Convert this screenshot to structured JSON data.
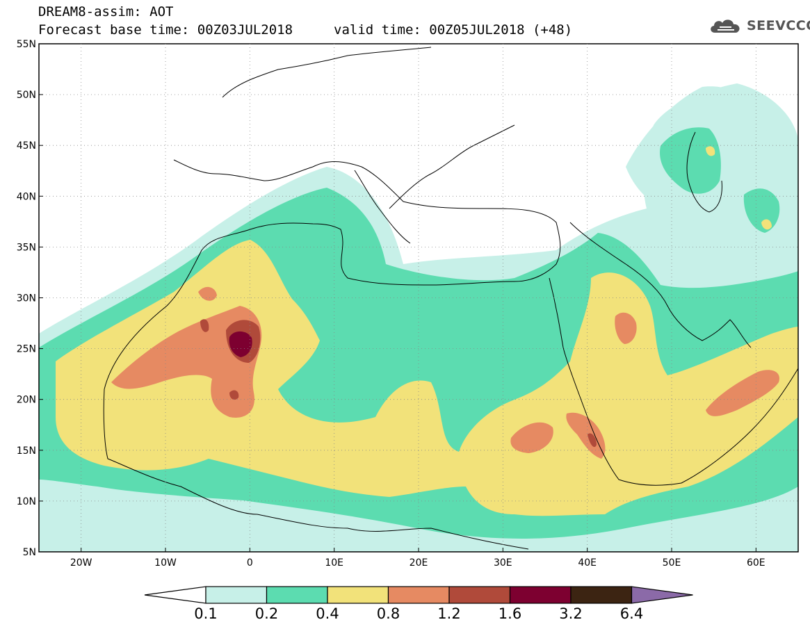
{
  "header": {
    "title": "DREAM8-assim: AOT",
    "base_time": "Forecast base time: 00Z03JUL2018",
    "valid_time": "valid time: 00Z05JUL2018 (+48)"
  },
  "logo": {
    "text": "SEEVCCC",
    "icon": "cloud-icon",
    "color": "#555555"
  },
  "map": {
    "lon_range": [
      -25,
      65
    ],
    "lat_range": [
      5,
      55
    ],
    "lon_ticks": [
      "20W",
      "10W",
      "0",
      "10E",
      "20E",
      "30E",
      "40E",
      "50E",
      "60E"
    ],
    "lat_ticks": [
      "5N",
      "10N",
      "15N",
      "20N",
      "25N",
      "30N",
      "35N",
      "40N",
      "45N",
      "50N",
      "55N"
    ],
    "grid": "dotted"
  },
  "colorbar": {
    "labels": [
      "0.1",
      "0.2",
      "0.4",
      "0.8",
      "1.2",
      "1.6",
      "3.2",
      "6.4"
    ],
    "colors": [
      "#ffffff",
      "#c7f0e8",
      "#5cdcb0",
      "#f2e27a",
      "#e68a62",
      "#b04a3a",
      "#7d0030",
      "#3c2412",
      "#8b6aa8"
    ]
  }
}
